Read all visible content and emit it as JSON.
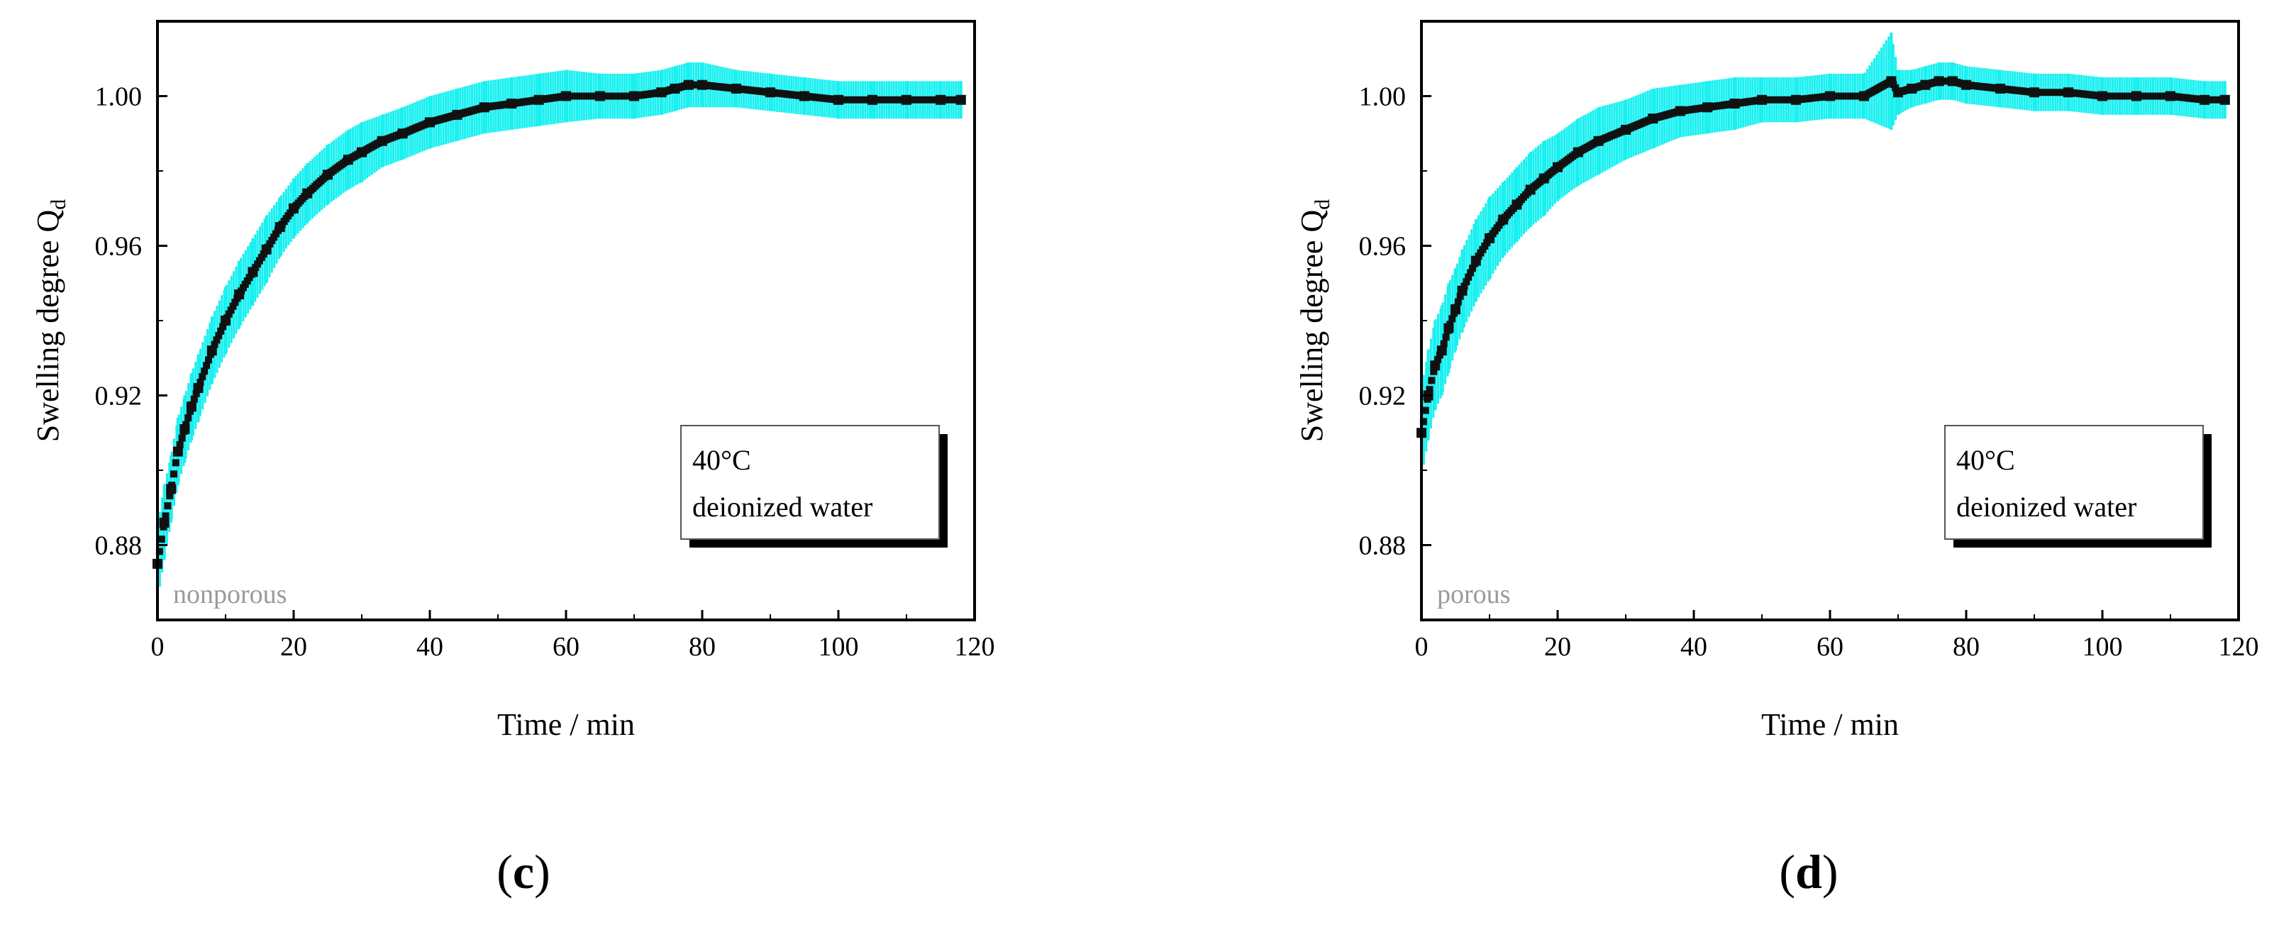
{
  "colors": {
    "errorbar": "#19f0f0",
    "points": "#111111",
    "axis": "#000000",
    "sample_label": "#9a9a9a"
  },
  "chart_data": [
    {
      "type": "scatter",
      "panel": "c",
      "caption_open": "(",
      "caption_letter": "c",
      "caption_close": ")",
      "xlabel": "Time / min",
      "ylabel": "Swelling degree Q",
      "ylabel_sub": "d",
      "xlim": [
        0,
        120
      ],
      "ylim": [
        0.86,
        1.02
      ],
      "xticks": [
        "0",
        "20",
        "40",
        "60",
        "80",
        "100",
        "120"
      ],
      "yticks": [
        "0.88",
        "0.92",
        "0.96",
        "1.00"
      ],
      "legend_lines": [
        "40°C",
        "deionized water"
      ],
      "legend_placement": "center-right",
      "sample_label": "nonporous",
      "series": [
        {
          "name": "mean with error bars",
          "x": [
            0,
            1,
            2,
            3,
            4,
            5,
            6,
            8,
            10,
            12,
            14,
            16,
            18,
            20,
            22,
            25,
            28,
            30,
            33,
            36,
            40,
            44,
            48,
            52,
            56,
            60,
            65,
            70,
            74,
            76,
            78,
            80,
            85,
            90,
            95,
            100,
            105,
            110,
            115,
            118
          ],
          "y": [
            0.875,
            0.886,
            0.895,
            0.905,
            0.911,
            0.917,
            0.922,
            0.932,
            0.94,
            0.947,
            0.953,
            0.959,
            0.965,
            0.97,
            0.974,
            0.979,
            0.983,
            0.985,
            0.988,
            0.99,
            0.993,
            0.995,
            0.997,
            0.998,
            0.999,
            1.0,
            1.0,
            1.0,
            1.001,
            1.002,
            1.003,
            1.003,
            1.002,
            1.001,
            1.0,
            0.999,
            0.999,
            0.999,
            0.999,
            0.999
          ],
          "yerr": [
            0.01,
            0.01,
            0.009,
            0.009,
            0.009,
            0.009,
            0.009,
            0.009,
            0.009,
            0.009,
            0.009,
            0.009,
            0.008,
            0.008,
            0.008,
            0.008,
            0.008,
            0.008,
            0.007,
            0.007,
            0.007,
            0.007,
            0.007,
            0.007,
            0.007,
            0.007,
            0.006,
            0.006,
            0.006,
            0.006,
            0.006,
            0.006,
            0.005,
            0.005,
            0.005,
            0.005,
            0.005,
            0.005,
            0.005,
            0.005
          ]
        }
      ]
    },
    {
      "type": "scatter",
      "panel": "d",
      "caption_open": "(",
      "caption_letter": "d",
      "caption_close": ")",
      "xlabel": "Time / min",
      "ylabel": "Swelling degree Q",
      "ylabel_sub": "d",
      "xlim": [
        0,
        120
      ],
      "ylim": [
        0.86,
        1.02
      ],
      "xticks": [
        "0",
        "20",
        "40",
        "60",
        "80",
        "100",
        "120"
      ],
      "yticks": [
        "0.88",
        "0.92",
        "0.96",
        "1.00"
      ],
      "legend_lines": [
        "40°C",
        "deionized water"
      ],
      "legend_placement": "center-right",
      "sample_label": "porous",
      "series": [
        {
          "name": "mean with error bars",
          "x": [
            0,
            1,
            2,
            3,
            4,
            5,
            6,
            8,
            10,
            12,
            14,
            16,
            18,
            20,
            23,
            26,
            30,
            34,
            38,
            42,
            46,
            50,
            55,
            60,
            65,
            69,
            70,
            72,
            74,
            76,
            78,
            80,
            85,
            90,
            95,
            100,
            105,
            110,
            115,
            118
          ],
          "y": [
            0.91,
            0.92,
            0.928,
            0.932,
            0.938,
            0.943,
            0.948,
            0.956,
            0.962,
            0.967,
            0.971,
            0.975,
            0.978,
            0.981,
            0.985,
            0.988,
            0.991,
            0.994,
            0.996,
            0.997,
            0.998,
            0.999,
            0.999,
            1.0,
            1.0,
            1.004,
            1.001,
            1.002,
            1.003,
            1.004,
            1.004,
            1.003,
            1.002,
            1.001,
            1.001,
            1.0,
            1.0,
            1.0,
            0.999,
            0.999
          ],
          "yerr": [
            0.012,
            0.012,
            0.012,
            0.012,
            0.012,
            0.011,
            0.011,
            0.011,
            0.011,
            0.01,
            0.01,
            0.01,
            0.01,
            0.009,
            0.009,
            0.009,
            0.008,
            0.008,
            0.007,
            0.007,
            0.007,
            0.006,
            0.006,
            0.006,
            0.006,
            0.013,
            0.006,
            0.005,
            0.005,
            0.005,
            0.005,
            0.005,
            0.005,
            0.005,
            0.005,
            0.005,
            0.005,
            0.005,
            0.005,
            0.005
          ]
        }
      ]
    }
  ]
}
